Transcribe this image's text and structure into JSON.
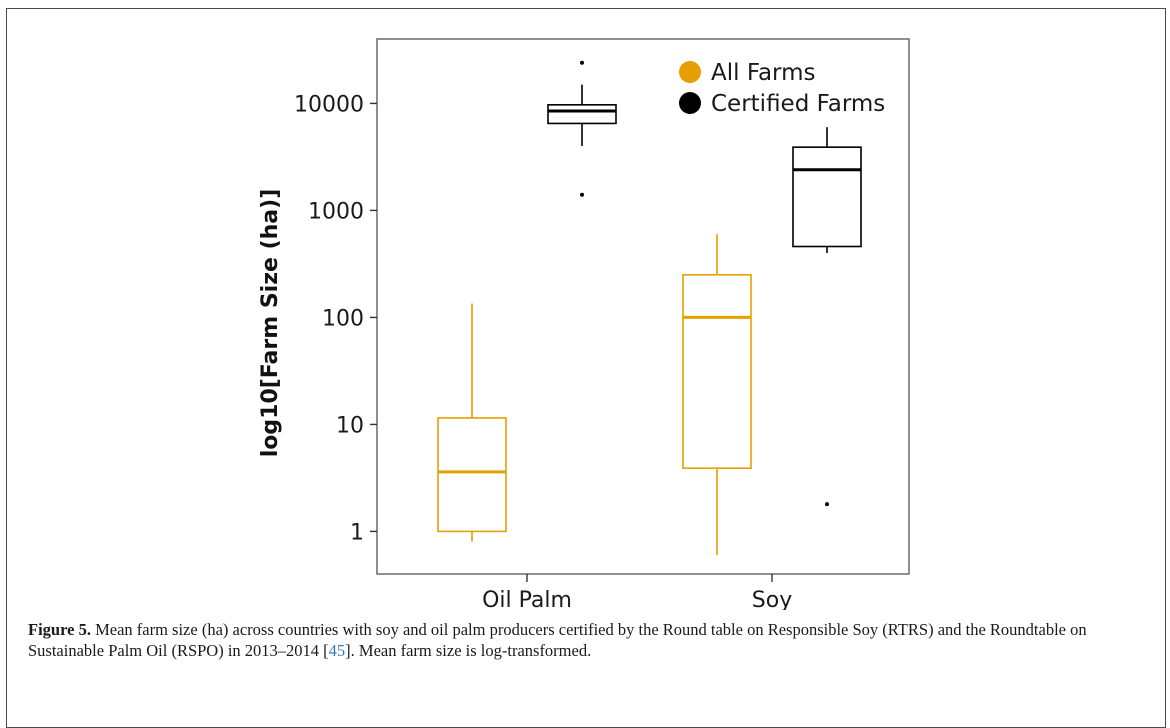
{
  "chart_data": {
    "type": "boxplot",
    "title": "",
    "xlabel": "",
    "ylabel": "log10[Farm Size (ha)]",
    "y_scale": "log",
    "ylim": [
      0.4,
      40000
    ],
    "y_ticks": [
      1,
      10,
      100,
      1000,
      10000
    ],
    "y_tick_labels": [
      "1",
      "10",
      "100",
      "1000",
      "10000"
    ],
    "categories": [
      "Oil Palm",
      "Soy"
    ],
    "legend_position": "top-right",
    "grid": false,
    "series": [
      {
        "name": "All Farms",
        "color": "#E69F00",
        "boxes": [
          {
            "category": "Oil Palm",
            "whisker_low": 0.8,
            "q1": 1.0,
            "median": 3.6,
            "q3": 11.5,
            "whisker_high": 135,
            "outliers": []
          },
          {
            "category": "Soy",
            "whisker_low": 0.6,
            "q1": 3.9,
            "median": 100,
            "q3": 250,
            "whisker_high": 600,
            "outliers": []
          }
        ]
      },
      {
        "name": "Certified Farms",
        "color": "#000000",
        "boxes": [
          {
            "category": "Oil Palm",
            "whisker_low": 4000,
            "q1": 6500,
            "median": 8500,
            "q3": 9700,
            "whisker_high": 15000,
            "outliers": [
              1400,
              24000
            ]
          },
          {
            "category": "Soy",
            "whisker_low": 400,
            "q1": 460,
            "median": 2400,
            "q3": 3900,
            "whisker_high": 6000,
            "outliers": [
              1.8
            ]
          }
        ]
      }
    ]
  },
  "caption": {
    "label": "Figure 5.",
    "text_before_ref": " Mean farm size (ha) across countries with soy and oil palm producers certified by the Round table on Responsible Soy (RTRS) and the Roundtable on Sustainable Palm Oil (RSPO) in 2013–2014 [",
    "ref": "45",
    "text_after_ref": "]. Mean farm size is log-transformed."
  }
}
